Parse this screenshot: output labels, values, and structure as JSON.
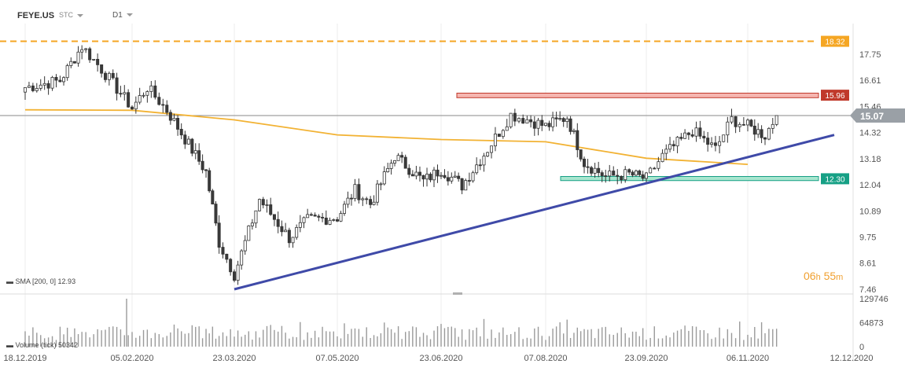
{
  "header": {
    "symbol": "FEYE.US",
    "market": "STC",
    "timeframe": "D1"
  },
  "legends": {
    "sma": "SMA [200, 0] 12.93",
    "volume": "Volume (tick) 50342"
  },
  "timer": {
    "hours": "06",
    "h": "h",
    "minutes": "55",
    "m": "m"
  },
  "colors": {
    "up_candle": "#ffffff",
    "down_candle": "#3a3a3a",
    "sma": "#f2b233",
    "trendline": "#3f4aa8",
    "resistance": "#c0392b",
    "support": "#16a085",
    "dashed_level": "#f5a623",
    "current_price": "#9aa0a6"
  },
  "chart_data": {
    "type": "candlestick",
    "title": "FEYE.US",
    "interval": "D1",
    "x_ticks": [
      "18.12.2019",
      "05.02.2020",
      "23.03.2020",
      "07.05.2020",
      "23.06.2020",
      "07.08.2020",
      "23.09.2020",
      "06.11.2020",
      "12.12.2020"
    ],
    "y_ticks": [
      "17.75",
      "16.61",
      "15.46",
      "14.32",
      "13.18",
      "12.04",
      "10.89",
      "9.75",
      "8.61",
      "7.46"
    ],
    "volume_ticks": [
      "129746",
      "64873",
      "0"
    ],
    "ylim": [
      7.46,
      18.89
    ],
    "price_labels": [
      {
        "label": "18.32",
        "value": 18.32,
        "color": "#f5a623",
        "style": "dashed"
      },
      {
        "label": "15.96",
        "value": 15.96,
        "color": "#c0392b",
        "style": "zone"
      },
      {
        "label": "15.07",
        "value": 15.07,
        "color": "#9aa0a6",
        "style": "current"
      },
      {
        "label": "12.30",
        "value": 12.3,
        "color": "#16a085",
        "style": "zone"
      }
    ],
    "resistance_zone": [
      15.85,
      16.05
    ],
    "support_zone": [
      12.22,
      12.4
    ],
    "trendline": {
      "from": {
        "x": "23.03.2020",
        "y": 7.46
      },
      "to": {
        "x": "06.12.2020",
        "y": 14.22
      }
    },
    "sma200": [
      {
        "x": "18.12.2019",
        "y": 15.32
      },
      {
        "x": "05.02.2020",
        "y": 15.3
      },
      {
        "x": "23.03.2020",
        "y": 14.88
      },
      {
        "x": "07.05.2020",
        "y": 14.22
      },
      {
        "x": "23.06.2020",
        "y": 14.02
      },
      {
        "x": "07.08.2020",
        "y": 13.92
      },
      {
        "x": "23.09.2020",
        "y": 13.2
      },
      {
        "x": "06.11.2020",
        "y": 12.93
      }
    ],
    "price_path": [
      {
        "x": "18.12.2019",
        "y": 16.3
      },
      {
        "x": "03.01.2020",
        "y": 16.6
      },
      {
        "x": "13.01.2020",
        "y": 18.1
      },
      {
        "x": "22.01.2020",
        "y": 17.1
      },
      {
        "x": "05.02.2020",
        "y": 15.4
      },
      {
        "x": "12.02.2020",
        "y": 16.3
      },
      {
        "x": "21.02.2020",
        "y": 15.3
      },
      {
        "x": "02.03.2020",
        "y": 13.8
      },
      {
        "x": "10.03.2020",
        "y": 12.6
      },
      {
        "x": "16.03.2020",
        "y": 9.5
      },
      {
        "x": "23.03.2020",
        "y": 8.1
      },
      {
        "x": "03.04.2020",
        "y": 11.4
      },
      {
        "x": "16.04.2020",
        "y": 9.7
      },
      {
        "x": "24.04.2020",
        "y": 10.5
      },
      {
        "x": "07.05.2020",
        "y": 10.6
      },
      {
        "x": "15.05.2020",
        "y": 11.8
      },
      {
        "x": "22.05.2020",
        "y": 11.2
      },
      {
        "x": "02.06.2020",
        "y": 13.3
      },
      {
        "x": "15.06.2020",
        "y": 12.2
      },
      {
        "x": "23.06.2020",
        "y": 12.7
      },
      {
        "x": "02.07.2020",
        "y": 12.0
      },
      {
        "x": "13.07.2020",
        "y": 13.6
      },
      {
        "x": "23.07.2020",
        "y": 15.1
      },
      {
        "x": "30.07.2020",
        "y": 14.9
      },
      {
        "x": "07.08.2020",
        "y": 14.6
      },
      {
        "x": "17.08.2020",
        "y": 15.0
      },
      {
        "x": "25.08.2020",
        "y": 13.0
      },
      {
        "x": "04.09.2020",
        "y": 12.4
      },
      {
        "x": "15.09.2020",
        "y": 12.5
      },
      {
        "x": "23.09.2020",
        "y": 12.3
      },
      {
        "x": "30.09.2020",
        "y": 13.3
      },
      {
        "x": "13.10.2020",
        "y": 14.4
      },
      {
        "x": "23.10.2020",
        "y": 13.6
      },
      {
        "x": "30.10.2020",
        "y": 14.9
      },
      {
        "x": "06.11.2020",
        "y": 14.6
      },
      {
        "x": "12.11.2020",
        "y": 14.2
      },
      {
        "x": "16.11.2020",
        "y": 15.07
      }
    ],
    "volume_peak": {
      "x": "05.02.2020",
      "value": 129746
    },
    "grid": false,
    "legend": "bottom-left"
  }
}
